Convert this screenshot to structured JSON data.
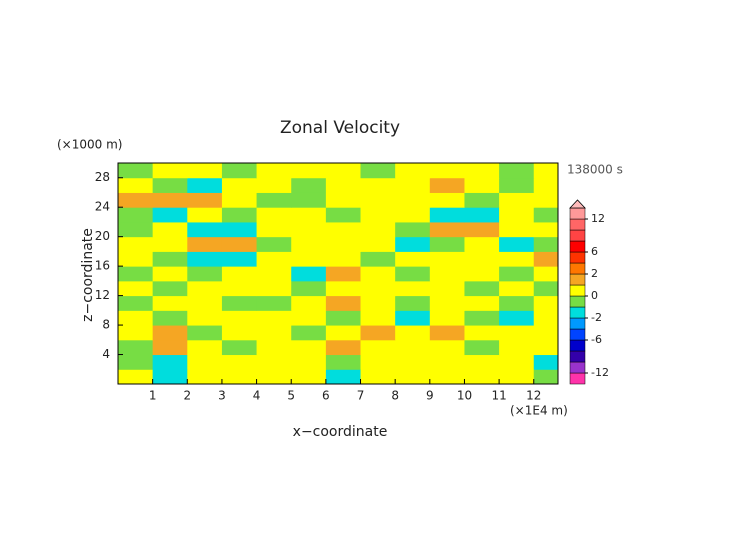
{
  "chart_data": {
    "type": "contour",
    "title": "Zonal Velocity",
    "y_unit": "(×1000 m)",
    "x_unit": "(×1E4 m)",
    "time_label": "138000 s",
    "xlabel": "x−coordinate",
    "ylabel": "z−coordinate",
    "xlim": [
      0,
      12.7
    ],
    "ylim": [
      0,
      30
    ],
    "xticks": [
      1,
      2,
      3,
      4,
      5,
      6,
      7,
      8,
      9,
      10,
      11,
      12
    ],
    "yticks": [
      4,
      8,
      12,
      16,
      20,
      24,
      28
    ],
    "x": [
      0.5,
      1.5,
      2.5,
      3.5,
      4.5,
      5.5,
      6.5,
      7.5,
      8.5,
      9.5,
      10.5,
      11.5,
      12.5
    ],
    "z": [
      1,
      3,
      5,
      7,
      9,
      11,
      13,
      15,
      17,
      19,
      21,
      23,
      25,
      27,
      29
    ],
    "values": [
      [
        0.5,
        -1.5,
        0.5,
        0.5,
        0.5,
        0.5,
        -1.5,
        0.5,
        0.5,
        0.5,
        0.5,
        0.5,
        -0.5
      ],
      [
        -0.5,
        -1.5,
        0.5,
        0.5,
        0.5,
        0.5,
        -0.5,
        0.5,
        0.5,
        0.5,
        0.5,
        0.5,
        -1.5
      ],
      [
        -0.5,
        1.5,
        0.5,
        -0.5,
        0.5,
        0.5,
        1.5,
        0.5,
        0.5,
        0.5,
        -0.5,
        0.5,
        0.5
      ],
      [
        0.5,
        1.5,
        -0.5,
        0.5,
        0.5,
        -0.5,
        0.5,
        1.5,
        0.5,
        1.5,
        0.5,
        0.5,
        0.5
      ],
      [
        0.5,
        -0.5,
        0.5,
        0.5,
        0.5,
        0.5,
        -0.5,
        0.5,
        -1.5,
        0.5,
        -0.5,
        -1.5,
        0.5
      ],
      [
        -0.5,
        0.5,
        0.5,
        -0.5,
        -0.5,
        0.5,
        1.5,
        0.5,
        -0.5,
        0.5,
        0.5,
        -0.5,
        0.5
      ],
      [
        0.5,
        -0.5,
        0.5,
        0.5,
        0.5,
        -0.5,
        0.5,
        0.5,
        0.5,
        0.5,
        -0.5,
        0.5,
        -0.5
      ],
      [
        -0.5,
        0.5,
        -0.5,
        0.5,
        0.5,
        -1.5,
        1.5,
        0.5,
        -0.5,
        0.5,
        0.5,
        -0.5,
        0.5
      ],
      [
        0.5,
        -0.5,
        -1.5,
        -1.5,
        0.5,
        0.5,
        0.5,
        -0.5,
        0.5,
        0.5,
        0.5,
        0.5,
        1.5
      ],
      [
        0.5,
        0.5,
        1.5,
        1.5,
        -0.5,
        0.5,
        0.5,
        0.5,
        -1.5,
        -0.5,
        0.5,
        -1.5,
        -0.5
      ],
      [
        -0.5,
        0.5,
        -1.5,
        -1.5,
        0.5,
        0.5,
        0.5,
        0.5,
        -0.5,
        1.5,
        1.5,
        0.5,
        0.5
      ],
      [
        -0.5,
        -1.5,
        0.5,
        -0.5,
        0.5,
        0.5,
        -0.5,
        0.5,
        0.5,
        -1.5,
        -1.5,
        0.5,
        -0.5
      ],
      [
        1.5,
        1.5,
        1.5,
        0.5,
        -0.5,
        -0.5,
        0.5,
        0.5,
        0.5,
        0.5,
        -0.5,
        0.5,
        0.5
      ],
      [
        0.5,
        -0.5,
        -1.5,
        0.5,
        0.5,
        -0.5,
        0.5,
        0.5,
        0.5,
        1.5,
        0.5,
        -0.5,
        0.5
      ],
      [
        -0.5,
        0.5,
        0.5,
        -0.5,
        0.5,
        0.5,
        0.5,
        -0.5,
        0.5,
        0.5,
        0.5,
        -0.5,
        0.5
      ]
    ],
    "levels": [
      -14,
      -12,
      -10,
      -8,
      -6,
      -4,
      -2,
      -1,
      0,
      1,
      2,
      4,
      6,
      8,
      10,
      12,
      14
    ],
    "colors": [
      "#ff33aa",
      "#9933cc",
      "#3300aa",
      "#0000cc",
      "#0044ff",
      "#0099ff",
      "#00dddd",
      "#77dd44",
      "#ffff00",
      "#f5a623",
      "#ff7700",
      "#ff3300",
      "#ff0000",
      "#ff4444",
      "#ff6666",
      "#ff9999"
    ],
    "over_color": "#ffbbbb",
    "colorbar_ticks": [
      12,
      6,
      2,
      0,
      -2,
      -6,
      -12
    ]
  }
}
